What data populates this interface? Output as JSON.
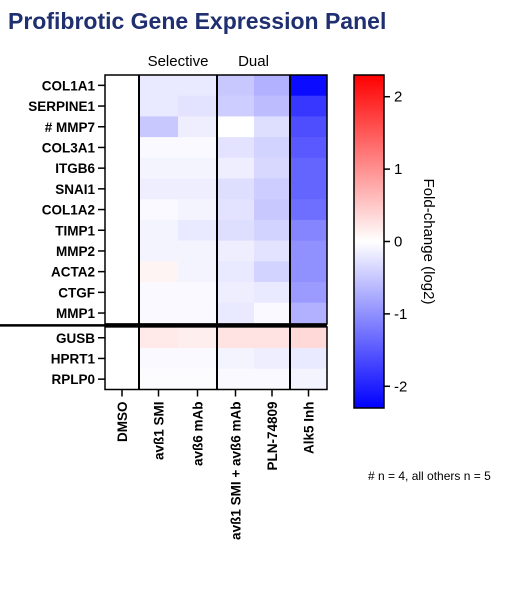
{
  "chart_data": {
    "type": "heatmap",
    "title": "Profibrotic Gene Expression Panel",
    "groups": [
      {
        "label": "Selective",
        "columns": [
          1,
          2
        ]
      },
      {
        "label": "Dual",
        "columns": [
          3,
          4
        ]
      }
    ],
    "columns": [
      "DMSO",
      "avß1 SMI",
      "avß6 mAb",
      "avß1 SMI + avß6 mAb",
      "PLN-74809",
      "Alk5 Inh"
    ],
    "rows": [
      "COL1A1",
      "SERPINE1",
      "# MMP7",
      "COL3A1",
      "ITGB6",
      "SNAI1",
      "COL1A2",
      "TIMP1",
      "MMP2",
      "ACTA2",
      "CTGF",
      "MMP1",
      "GUSB",
      "HPRT1",
      "RPLP0"
    ],
    "row_separator_after": "MMP1",
    "values": [
      [
        0,
        -0.2,
        -0.2,
        -0.5,
        -0.7,
        -2.2
      ],
      [
        0,
        -0.2,
        -0.25,
        -0.45,
        -0.6,
        -1.8
      ],
      [
        0,
        -0.5,
        -0.15,
        0.0,
        -0.3,
        -1.6
      ],
      [
        0,
        -0.05,
        -0.05,
        -0.25,
        -0.4,
        -1.5
      ],
      [
        0,
        -0.1,
        -0.1,
        -0.15,
        -0.35,
        -1.4
      ],
      [
        0,
        -0.15,
        -0.15,
        -0.3,
        -0.45,
        -1.4
      ],
      [
        0,
        -0.05,
        -0.1,
        -0.25,
        -0.5,
        -1.3
      ],
      [
        0,
        -0.1,
        -0.2,
        -0.3,
        -0.4,
        -1.1
      ],
      [
        0,
        -0.1,
        -0.1,
        -0.15,
        -0.25,
        -1.0
      ],
      [
        0,
        0.1,
        -0.1,
        -0.2,
        -0.4,
        -1.0
      ],
      [
        0,
        -0.05,
        -0.05,
        -0.15,
        -0.2,
        -0.9
      ],
      [
        0,
        -0.05,
        -0.05,
        -0.2,
        -0.05,
        -0.7
      ],
      [
        0,
        0.2,
        0.15,
        0.25,
        0.25,
        0.35
      ],
      [
        0,
        -0.05,
        -0.05,
        -0.1,
        -0.15,
        -0.2
      ],
      [
        0,
        -0.03,
        -0.03,
        -0.05,
        -0.05,
        -0.1
      ]
    ],
    "color_scale": {
      "min": -2.3,
      "max": 2.3,
      "low_color": "#0000ff",
      "mid_color": "#ffffff",
      "high_color": "#ff0000"
    },
    "colorbar_label": "Fold-change (log2)",
    "colorbar_ticks": [
      2,
      1,
      0,
      -1,
      -2
    ],
    "footnote": "# n = 4, all others n = 5"
  }
}
